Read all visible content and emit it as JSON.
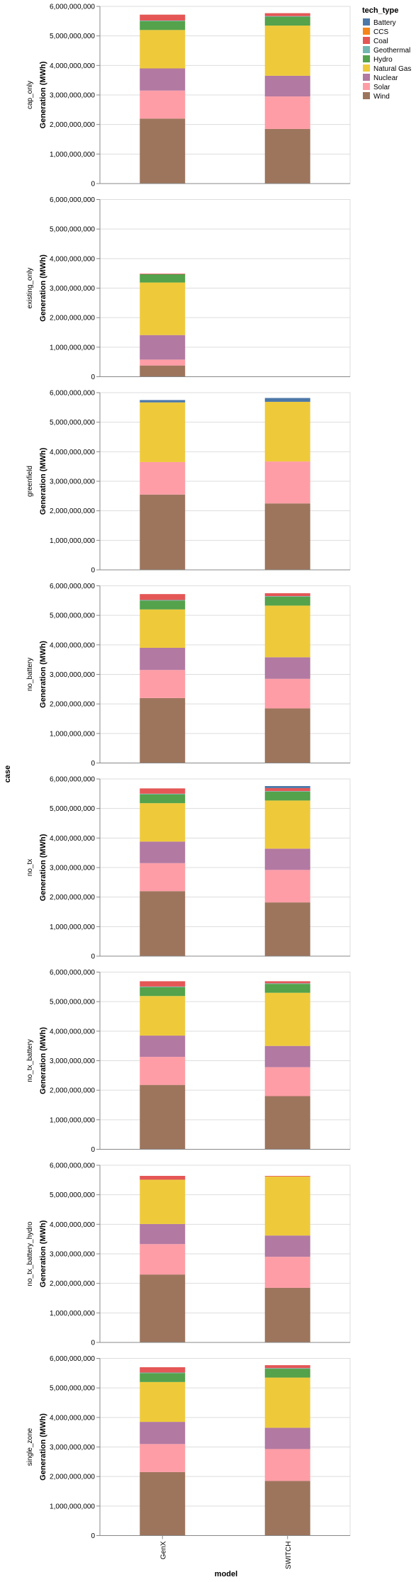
{
  "chart_data": {
    "type": "bar",
    "stacked": true,
    "faceted_by": "case",
    "row_title": "case",
    "xlabel": "model",
    "ylabel": "Generation (MWh)",
    "ylim": [
      0,
      6000000000
    ],
    "y_ticks": [
      "0",
      "1,000,000,000",
      "2,000,000,000",
      "3,000,000,000",
      "4,000,000,000",
      "5,000,000,000",
      "6,000,000,000"
    ],
    "grid": true,
    "categories": [
      "GenX",
      "SWITCH"
    ],
    "legend": {
      "title": "tech_type",
      "placement": "top-right",
      "items": [
        {
          "name": "Battery",
          "color": "#4c78a8"
        },
        {
          "name": "CCS",
          "color": "#f58518"
        },
        {
          "name": "Coal",
          "color": "#e45756"
        },
        {
          "name": "Geothermal",
          "color": "#72b7b2"
        },
        {
          "name": "Hydro",
          "color": "#54a24b"
        },
        {
          "name": "Natural Gas",
          "color": "#eeca3b"
        },
        {
          "name": "Nuclear",
          "color": "#b279a2"
        },
        {
          "name": "Solar",
          "color": "#ff9da6"
        },
        {
          "name": "Wind",
          "color": "#9d755d"
        }
      ]
    },
    "facets": [
      {
        "case": "cap_only",
        "GenX": {
          "Wind": 2200000000,
          "Solar": 950000000,
          "Nuclear": 750000000,
          "Natural Gas": 1300000000,
          "Hydro": 300000000,
          "Coal": 200000000,
          "Geothermal": 20000000
        },
        "SWITCH": {
          "Wind": 1850000000,
          "Solar": 1100000000,
          "Nuclear": 700000000,
          "Natural Gas": 1700000000,
          "Hydro": 300000000,
          "Coal": 100000000,
          "Geothermal": 20000000
        }
      },
      {
        "case": "existing_only",
        "GenX": {
          "Wind": 380000000,
          "Solar": 200000000,
          "Nuclear": 830000000,
          "Natural Gas": 1780000000,
          "Hydro": 280000000,
          "Coal": 20000000
        },
        "SWITCH": {}
      },
      {
        "case": "greenfield",
        "GenX": {
          "Wind": 2550000000,
          "Solar": 1100000000,
          "Natural Gas": 2020000000,
          "Battery": 80000000
        },
        "SWITCH": {
          "Wind": 2250000000,
          "Solar": 1420000000,
          "Natural Gas": 2020000000,
          "Battery": 130000000
        }
      },
      {
        "case": "no_battery",
        "GenX": {
          "Wind": 2200000000,
          "Solar": 950000000,
          "Nuclear": 750000000,
          "Natural Gas": 1300000000,
          "Hydro": 300000000,
          "Coal": 200000000,
          "Geothermal": 20000000
        },
        "SWITCH": {
          "Wind": 1850000000,
          "Solar": 1000000000,
          "Nuclear": 730000000,
          "Natural Gas": 1750000000,
          "Hydro": 300000000,
          "Coal": 100000000,
          "Geothermal": 20000000
        }
      },
      {
        "case": "no_tx",
        "GenX": {
          "Wind": 2200000000,
          "Solar": 950000000,
          "Nuclear": 730000000,
          "Natural Gas": 1300000000,
          "Hydro": 300000000,
          "Coal": 180000000,
          "Geothermal": 20000000
        },
        "SWITCH": {
          "Wind": 1820000000,
          "Solar": 1100000000,
          "Nuclear": 720000000,
          "Natural Gas": 1630000000,
          "Hydro": 300000000,
          "Coal": 100000000,
          "Geothermal": 20000000,
          "Battery": 70000000
        }
      },
      {
        "case": "no_tx_battery",
        "GenX": {
          "Wind": 2180000000,
          "Solar": 950000000,
          "Nuclear": 720000000,
          "Natural Gas": 1340000000,
          "Hydro": 300000000,
          "Coal": 180000000,
          "Geothermal": 20000000
        },
        "SWITCH": {
          "Wind": 1800000000,
          "Solar": 980000000,
          "Nuclear": 720000000,
          "Natural Gas": 1800000000,
          "Hydro": 300000000,
          "Coal": 70000000,
          "Geothermal": 20000000
        }
      },
      {
        "case": "no_tx_battery_hydro",
        "GenX": {
          "Wind": 2300000000,
          "Solar": 1030000000,
          "Nuclear": 680000000,
          "Natural Gas": 1500000000,
          "Coal": 130000000
        },
        "SWITCH": {
          "Wind": 1850000000,
          "Solar": 1050000000,
          "Nuclear": 720000000,
          "Natural Gas": 2000000000,
          "Coal": 20000000
        }
      },
      {
        "case": "single_zone",
        "GenX": {
          "Wind": 2150000000,
          "Solar": 950000000,
          "Nuclear": 750000000,
          "Natural Gas": 1350000000,
          "Hydro": 300000000,
          "Coal": 180000000,
          "Geothermal": 20000000
        },
        "SWITCH": {
          "Wind": 1850000000,
          "Solar": 1080000000,
          "Nuclear": 720000000,
          "Natural Gas": 1700000000,
          "Hydro": 300000000,
          "Coal": 100000000,
          "Geothermal": 20000000
        }
      }
    ]
  }
}
